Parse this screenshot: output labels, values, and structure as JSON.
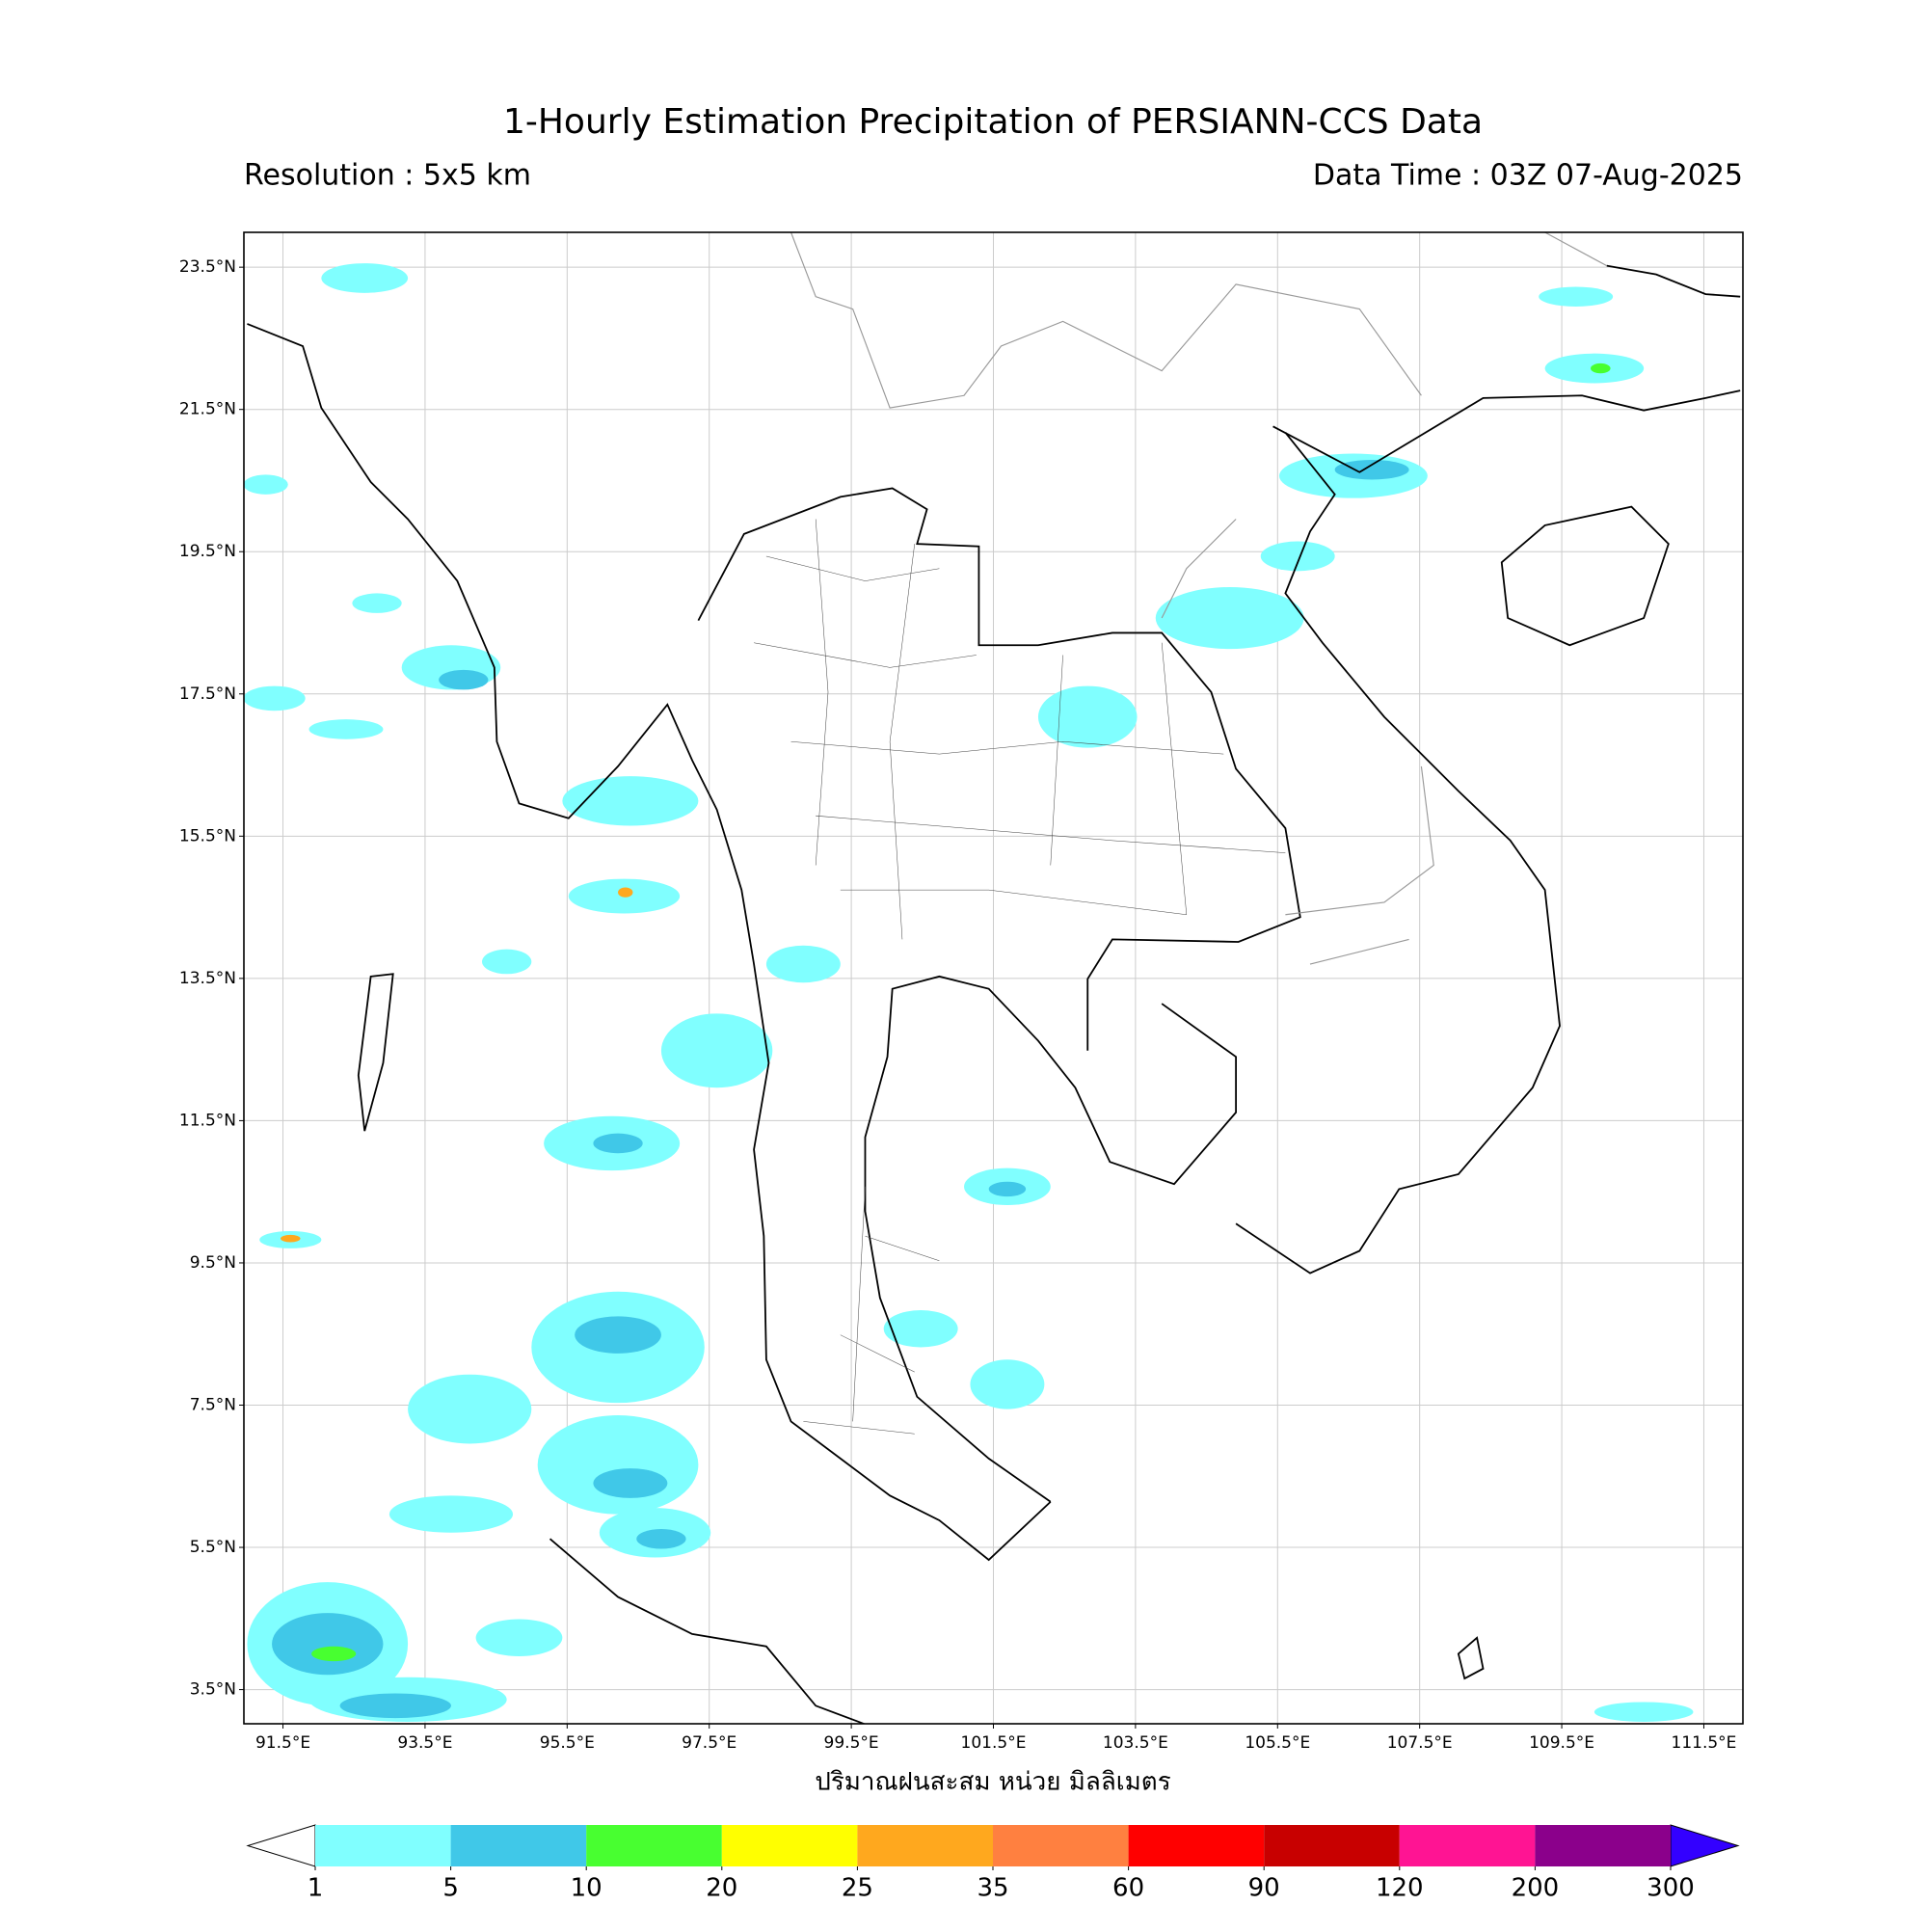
{
  "header": {
    "title": "1-Hourly Estimation Precipitation of PERSIANN-CCS Data",
    "resolution": "Resolution : 5x5 km",
    "data_time": "Data Time : 03Z 07-Aug-2025"
  },
  "map": {
    "lon_range": [
      90.95,
      112.05
    ],
    "lat_range": [
      3.02,
      23.99
    ],
    "lat_ticks": [
      {
        "value": 23.5,
        "label": "23.5°N"
      },
      {
        "value": 21.5,
        "label": "21.5°N"
      },
      {
        "value": 19.5,
        "label": "19.5°N"
      },
      {
        "value": 17.5,
        "label": "17.5°N"
      },
      {
        "value": 15.5,
        "label": "15.5°N"
      },
      {
        "value": 13.5,
        "label": "13.5°N"
      },
      {
        "value": 11.5,
        "label": "11.5°N"
      },
      {
        "value": 9.5,
        "label": "9.5°N"
      },
      {
        "value": 7.5,
        "label": "7.5°N"
      },
      {
        "value": 5.5,
        "label": "5.5°N"
      },
      {
        "value": 3.5,
        "label": "3.5°N"
      }
    ],
    "lon_ticks": [
      {
        "value": 91.5,
        "label": "91.5°E"
      },
      {
        "value": 93.5,
        "label": "93.5°E"
      },
      {
        "value": 95.5,
        "label": "95.5°E"
      },
      {
        "value": 97.5,
        "label": "97.5°E"
      },
      {
        "value": 99.5,
        "label": "99.5°E"
      },
      {
        "value": 101.5,
        "label": "101.5°E"
      },
      {
        "value": 103.5,
        "label": "103.5°E"
      },
      {
        "value": 105.5,
        "label": "105.5°E"
      },
      {
        "value": 107.5,
        "label": "107.5°E"
      },
      {
        "value": 109.5,
        "label": "109.5°E"
      },
      {
        "value": 111.5,
        "label": "111.5°E"
      }
    ],
    "grid": true,
    "x_label": "ปริมาณฝนสะสม หน่วย มิลลิเมตร"
  },
  "colorbar": {
    "levels": [
      1,
      5,
      10,
      20,
      25,
      35,
      60,
      90,
      120,
      200,
      300
    ],
    "colors": [
      "#80ffff",
      "#40c8e8",
      "#48ff30",
      "#ffff00",
      "#ffa81e",
      "#ff8040",
      "#ff0000",
      "#c80000",
      "#ff1493",
      "#8b008b"
    ],
    "under_color": "#ffffff",
    "over_color": "#3300ff"
  }
}
